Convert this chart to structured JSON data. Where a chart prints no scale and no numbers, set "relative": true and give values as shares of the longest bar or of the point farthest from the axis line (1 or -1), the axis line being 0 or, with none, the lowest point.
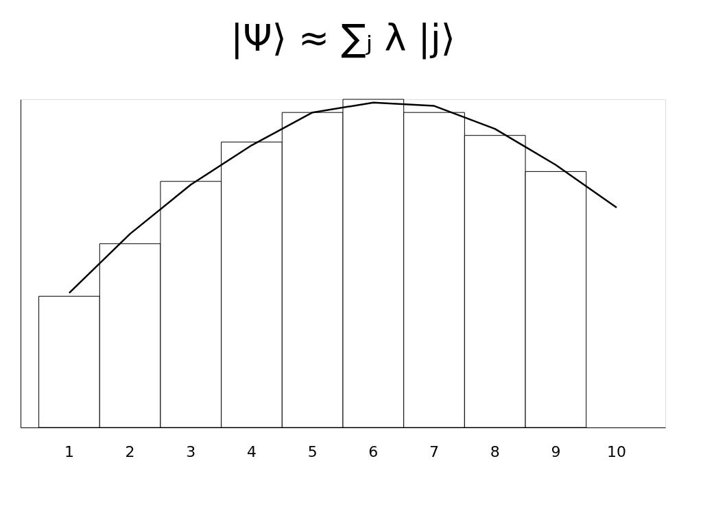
{
  "chart_data": {
    "type": "bar",
    "title": "|Ψ⟩ ≈ ∑ⱼ λ |j⟩",
    "relative": true,
    "categories": [
      "1",
      "2",
      "3",
      "4",
      "5",
      "6",
      "7",
      "8",
      "9",
      "10"
    ],
    "series": [
      {
        "color": "#ffffff",
        "values": [
          0.4,
          0.56,
          0.75,
          0.87,
          0.96,
          1.0,
          0.96,
          0.89,
          0.78,
          null
        ]
      },
      {
        "type": "line",
        "color": "#000000",
        "values": [
          0.41,
          0.59,
          0.74,
          0.86,
          0.96,
          0.99,
          0.98,
          0.91,
          0.8,
          0.67
        ]
      }
    ],
    "marker": "none",
    "line_style": "solid"
  }
}
